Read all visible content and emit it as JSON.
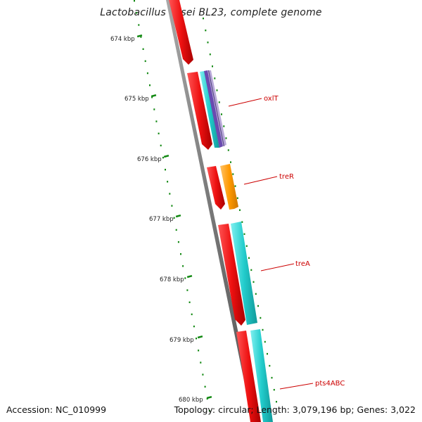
{
  "title": "Lactobacillus casei BL23, complete genome",
  "footer": {
    "accession": "Accession: NC_010999",
    "summary": "Topology: circular; Length: 3,079,196 bp; Genes: 3,022"
  },
  "axis_labels": [
    "674 kbp",
    "675 kbp",
    "676 kbp",
    "677 kbp",
    "678 kbp",
    "679 kbp",
    "680 kbp"
  ],
  "gene_labels": [
    "oxlT",
    "treR",
    "treA",
    "pts4ABC"
  ],
  "colors": {
    "backbone": "#777777",
    "scale_tick": "#118811",
    "cds_forward": "#ee1111",
    "treR": "#ff9900",
    "treA": "#22cccc",
    "pts4ABC": "#22cccc",
    "oxlT_cyan": "#22cccc",
    "oxlT_violet": "#6a4bb0",
    "oxlT_lavender": "#b8a8d8",
    "label": "#cc0000"
  }
}
